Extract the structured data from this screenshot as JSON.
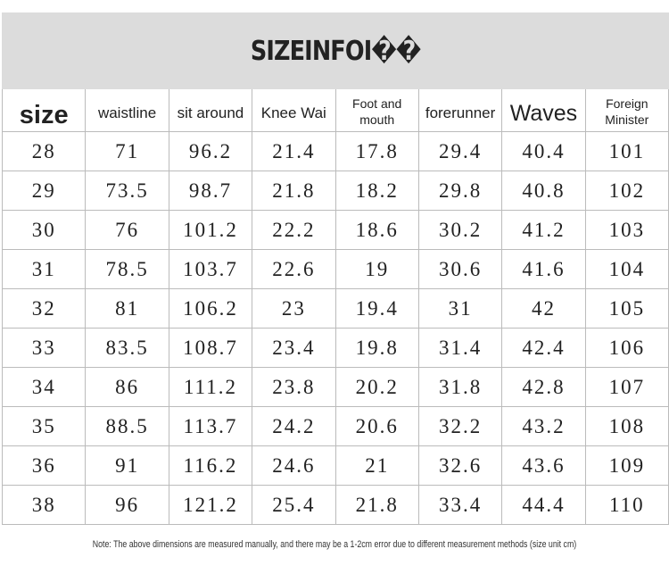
{
  "header": {
    "title": "SIZEINFOI��"
  },
  "table": {
    "columns": [
      "size",
      "waistline",
      "sit around",
      "Knee Wai",
      "Foot and mouth",
      "forerunner",
      "Waves",
      "Foreign Minister"
    ],
    "rows": [
      [
        28,
        71,
        96.2,
        21.4,
        17.8,
        29.4,
        40.4,
        101
      ],
      [
        29,
        73.5,
        98.7,
        21.8,
        18.2,
        29.8,
        40.8,
        102
      ],
      [
        30,
        76,
        101.2,
        22.2,
        18.6,
        30.2,
        41.2,
        103
      ],
      [
        31,
        78.5,
        103.7,
        22.6,
        19,
        30.6,
        41.6,
        104
      ],
      [
        32,
        81,
        106.2,
        23,
        19.4,
        31,
        42,
        105
      ],
      [
        33,
        83.5,
        108.7,
        23.4,
        19.8,
        31.4,
        42.4,
        106
      ],
      [
        34,
        86,
        111.2,
        23.8,
        20.2,
        31.8,
        42.8,
        107
      ],
      [
        35,
        88.5,
        113.7,
        24.2,
        20.6,
        32.2,
        43.2,
        108
      ],
      [
        36,
        91,
        116.2,
        24.6,
        21,
        32.6,
        43.6,
        109
      ],
      [
        38,
        96,
        121.2,
        25.4,
        21.8,
        33.4,
        44.4,
        110
      ]
    ]
  },
  "note": "Note: The above dimensions are measured manually, and there may be a 1-2cm error due to different measurement methods (size unit cm)"
}
